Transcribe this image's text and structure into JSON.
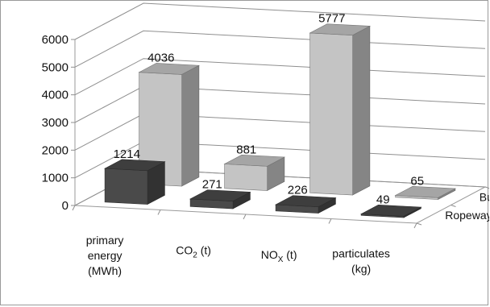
{
  "chart_data": {
    "type": "bar",
    "title": "",
    "xlabel": "",
    "ylabel": "",
    "ylim": [
      0,
      6000
    ],
    "y_ticks": [
      "0",
      "1000",
      "2000",
      "3000",
      "4000",
      "5000",
      "6000"
    ],
    "grid": true,
    "three_d": true,
    "categories": [
      {
        "main": "primary",
        "lines": [
          "primary",
          "energy",
          "(MWh)"
        ]
      },
      {
        "main": "CO",
        "sub": "2",
        "suffix": " (t)"
      },
      {
        "main": "NO",
        "sub": "X",
        "suffix": " (t)"
      },
      {
        "main": "particulates",
        "lines": [
          "particulates",
          "(kg)"
        ]
      }
    ],
    "category_names": [
      "primary energy (MWh)",
      "CO2 (t)",
      "NOX (t)",
      "particulates (kg)"
    ],
    "series": [
      {
        "name": "Ropeway",
        "values": [
          1214,
          271,
          226,
          49
        ],
        "color": "#4a4a4a"
      },
      {
        "name": "Bus",
        "values": [
          4036,
          881,
          5777,
          65
        ],
        "color": "#c4c4c4"
      }
    ]
  }
}
